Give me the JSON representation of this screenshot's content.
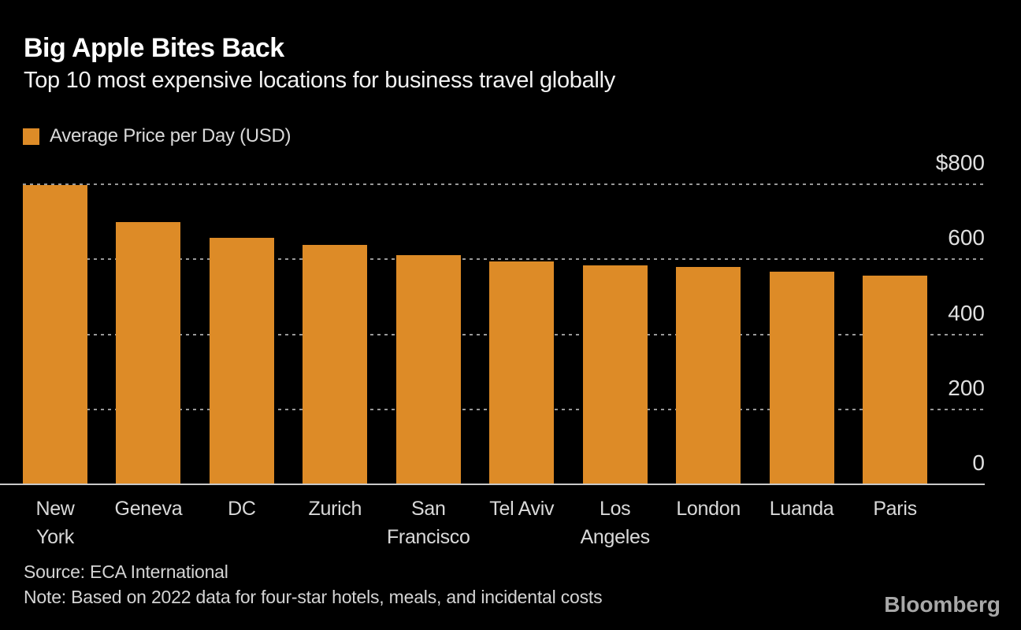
{
  "header": {
    "title": "Big Apple Bites Back",
    "subtitle": "Top 10 most expensive locations for business travel globally"
  },
  "legend": {
    "label": "Average Price per Day (USD)",
    "swatch_color": "#DD8B27"
  },
  "chart_data": {
    "type": "bar",
    "title": "Big Apple Bites Back",
    "subtitle": "Top 10 most expensive locations for business travel globally",
    "series_name": "Average Price per Day (USD)",
    "unit": "USD per day",
    "categories": [
      "New York",
      "Geneva",
      "DC",
      "Zurich",
      "San Francisco",
      "Tel Aviv",
      "Los Angeles",
      "London",
      "Luanda",
      "Paris"
    ],
    "tick_lines": [
      [
        "New",
        "York"
      ],
      [
        "Geneva"
      ],
      [
        "DC"
      ],
      [
        "Zurich"
      ],
      [
        "San",
        "Francisco"
      ],
      [
        "Tel Aviv"
      ],
      [
        "Los",
        "Angeles"
      ],
      [
        "London"
      ],
      [
        "Luanda"
      ],
      [
        "Paris"
      ]
    ],
    "values": [
      796,
      698,
      656,
      637,
      609,
      592,
      582,
      578,
      564,
      555
    ],
    "ylim": [
      0,
      800
    ],
    "y_ticks": [
      {
        "value": 800,
        "label": "$800"
      },
      {
        "value": 600,
        "label": "600"
      },
      {
        "value": 400,
        "label": "400"
      },
      {
        "value": 200,
        "label": "200"
      },
      {
        "value": 0,
        "label": "0"
      }
    ],
    "grid": "horizontal dotted gridlines at 200, 400, 600, 800; solid baseline at 0",
    "legend_position": "top-left",
    "y_axis_side": "right",
    "bar_color": "#DD8B27",
    "background_color": "#000000"
  },
  "footer": {
    "source": "Source: ECA International",
    "note": "Note: Based on 2022 data for four-star hotels, meals, and incidental costs",
    "brand": "Bloomberg"
  }
}
